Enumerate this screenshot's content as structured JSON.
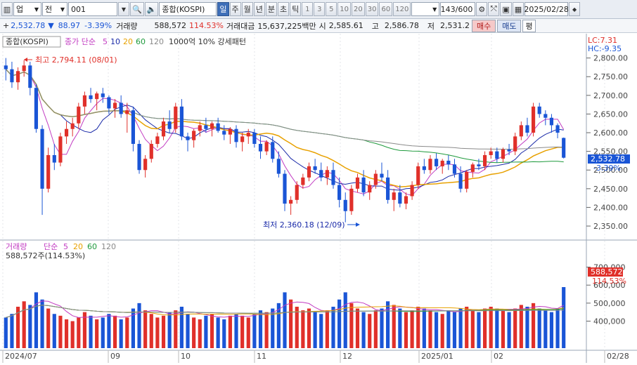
{
  "toolbar": {
    "market": "업",
    "market_type": "전",
    "code": "001",
    "name": "종합(KOSPI)",
    "periods": [
      "일",
      "주",
      "월",
      "년",
      "분",
      "초",
      "틱"
    ],
    "active_period": "일",
    "minute_options": [
      "1",
      "3",
      "5",
      "10",
      "20",
      "30",
      "60",
      "120"
    ],
    "count": "143",
    "count_total": "/600",
    "date": "2025/02/28"
  },
  "info": {
    "price": "2,532.78",
    "change": "88.97",
    "change_pct": "-3.39%",
    "volume_label": "거래량",
    "volume": "588,572",
    "volume_pct": "114.53%",
    "amount_label": "거래대금",
    "amount": "15,637,225백만",
    "open_label": "시",
    "open": "2,585.61",
    "high_label": "고",
    "high": "2,586.78",
    "low_label": "저",
    "low": "2,531.2",
    "buy_label": "매수",
    "sell_label": "매도",
    "eval_label": "평"
  },
  "price_legend": {
    "name": "종합(KOSPI)",
    "ma_label": "종가 단순",
    "ma_periods": [
      "5",
      "10",
      "20",
      "60",
      "120"
    ],
    "pattern": "1000억 10% 강세패턴"
  },
  "corner": {
    "lc": "LC:7.31",
    "hc": "HC:-9.35"
  },
  "annotations": {
    "high": "최고 2,794.11 (08/01)",
    "low": "최저 2,360.18 (12/09)"
  },
  "last_price": {
    "value": "2,532.78",
    "pct": "-3.39%"
  },
  "volume_legend": {
    "name": "거래량",
    "ma_label": "단순",
    "ma_periods": [
      "5",
      "20",
      "60",
      "120"
    ],
    "current": "588,572주(114.53%)"
  },
  "last_volume": {
    "value": "588,572",
    "pct": "114.53%"
  },
  "colors": {
    "up": "#e0302a",
    "down": "#1a55d6",
    "ma5": "#c23cc2",
    "ma10": "#1a2aa8",
    "ma20": "#e8a100",
    "ma60": "#1e9a3c",
    "ma120": "#8a8a8a"
  },
  "chart_data": {
    "type": "candlestick",
    "price_axis": {
      "ticks": [
        2350,
        2400,
        2450,
        2500,
        2550,
        2600,
        2650,
        2700,
        2750,
        2800
      ]
    },
    "volume_axis": {
      "ticks": [
        400000,
        500000,
        600000,
        700000
      ]
    },
    "x_labels": [
      "2024/07",
      "09",
      "10",
      "11",
      "12",
      "2025/01",
      "02",
      "02/28"
    ],
    "candles": [
      [
        2780,
        2800,
        2740,
        2770
      ],
      [
        2770,
        2790,
        2720,
        2735
      ],
      [
        2735,
        2775,
        2715,
        2765
      ],
      [
        2765,
        2794,
        2750,
        2780
      ],
      [
        2780,
        2790,
        2700,
        2720
      ],
      [
        2720,
        2730,
        2600,
        2610
      ],
      [
        2610,
        2620,
        2380,
        2450
      ],
      [
        2450,
        2560,
        2440,
        2540
      ],
      [
        2540,
        2570,
        2500,
        2520
      ],
      [
        2520,
        2600,
        2510,
        2590
      ],
      [
        2590,
        2630,
        2570,
        2610
      ],
      [
        2610,
        2640,
        2590,
        2625
      ],
      [
        2625,
        2680,
        2610,
        2670
      ],
      [
        2670,
        2710,
        2650,
        2700
      ],
      [
        2700,
        2720,
        2680,
        2690
      ],
      [
        2690,
        2710,
        2660,
        2705
      ],
      [
        2705,
        2720,
        2680,
        2695
      ],
      [
        2695,
        2700,
        2650,
        2665
      ],
      [
        2665,
        2690,
        2640,
        2680
      ],
      [
        2680,
        2700,
        2640,
        2650
      ],
      [
        2650,
        2680,
        2600,
        2660
      ],
      [
        2660,
        2670,
        2550,
        2570
      ],
      [
        2570,
        2580,
        2490,
        2500
      ],
      [
        2500,
        2540,
        2480,
        2530
      ],
      [
        2530,
        2580,
        2520,
        2570
      ],
      [
        2570,
        2600,
        2560,
        2590
      ],
      [
        2590,
        2640,
        2580,
        2630
      ],
      [
        2630,
        2660,
        2600,
        2610
      ],
      [
        2610,
        2680,
        2600,
        2670
      ],
      [
        2670,
        2690,
        2580,
        2590
      ],
      [
        2590,
        2600,
        2550,
        2580
      ],
      [
        2580,
        2610,
        2560,
        2605
      ],
      [
        2605,
        2630,
        2590,
        2620
      ],
      [
        2620,
        2640,
        2600,
        2610
      ],
      [
        2610,
        2630,
        2590,
        2625
      ],
      [
        2625,
        2640,
        2600,
        2605
      ],
      [
        2605,
        2620,
        2580,
        2595
      ],
      [
        2595,
        2615,
        2570,
        2610
      ],
      [
        2610,
        2620,
        2560,
        2575
      ],
      [
        2575,
        2600,
        2550,
        2590
      ],
      [
        2590,
        2610,
        2570,
        2600
      ],
      [
        2600,
        2610,
        2560,
        2570
      ],
      [
        2570,
        2590,
        2530,
        2550
      ],
      [
        2550,
        2580,
        2540,
        2575
      ],
      [
        2575,
        2590,
        2520,
        2530
      ],
      [
        2530,
        2550,
        2480,
        2490
      ],
      [
        2490,
        2500,
        2390,
        2410
      ],
      [
        2410,
        2430,
        2380,
        2420
      ],
      [
        2420,
        2470,
        2410,
        2460
      ],
      [
        2460,
        2490,
        2450,
        2480
      ],
      [
        2480,
        2520,
        2470,
        2510
      ],
      [
        2510,
        2530,
        2490,
        2500
      ],
      [
        2500,
        2520,
        2470,
        2480
      ],
      [
        2480,
        2510,
        2460,
        2500
      ],
      [
        2500,
        2520,
        2450,
        2460
      ],
      [
        2460,
        2480,
        2400,
        2420
      ],
      [
        2420,
        2440,
        2360,
        2390
      ],
      [
        2390,
        2460,
        2380,
        2450
      ],
      [
        2450,
        2490,
        2440,
        2480
      ],
      [
        2480,
        2500,
        2430,
        2440
      ],
      [
        2440,
        2470,
        2420,
        2460
      ],
      [
        2460,
        2500,
        2450,
        2490
      ],
      [
        2490,
        2520,
        2470,
        2480
      ],
      [
        2480,
        2500,
        2410,
        2420
      ],
      [
        2420,
        2450,
        2390,
        2440
      ],
      [
        2440,
        2460,
        2400,
        2410
      ],
      [
        2410,
        2440,
        2395,
        2430
      ],
      [
        2430,
        2470,
        2420,
        2460
      ],
      [
        2460,
        2520,
        2450,
        2510
      ],
      [
        2510,
        2530,
        2490,
        2500
      ],
      [
        2500,
        2540,
        2490,
        2530
      ],
      [
        2530,
        2545,
        2500,
        2510
      ],
      [
        2510,
        2530,
        2490,
        2525
      ],
      [
        2525,
        2540,
        2500,
        2515
      ],
      [
        2515,
        2530,
        2480,
        2490
      ],
      [
        2490,
        2510,
        2440,
        2450
      ],
      [
        2450,
        2500,
        2440,
        2495
      ],
      [
        2495,
        2520,
        2480,
        2515
      ],
      [
        2515,
        2530,
        2500,
        2510
      ],
      [
        2510,
        2550,
        2500,
        2540
      ],
      [
        2540,
        2560,
        2530,
        2550
      ],
      [
        2550,
        2560,
        2520,
        2530
      ],
      [
        2530,
        2560,
        2520,
        2555
      ],
      [
        2555,
        2570,
        2540,
        2550
      ],
      [
        2550,
        2600,
        2540,
        2590
      ],
      [
        2590,
        2630,
        2580,
        2620
      ],
      [
        2620,
        2640,
        2590,
        2600
      ],
      [
        2600,
        2680,
        2590,
        2670
      ],
      [
        2670,
        2680,
        2640,
        2650
      ],
      [
        2650,
        2660,
        2620,
        2640
      ],
      [
        2640,
        2650,
        2600,
        2620
      ],
      [
        2620,
        2625,
        2585,
        2600
      ],
      [
        2586,
        2587,
        2531,
        2533
      ]
    ],
    "volumes": [
      420,
      440,
      480,
      510,
      490,
      560,
      520,
      470,
      440,
      430,
      410,
      400,
      420,
      450,
      430,
      410,
      420,
      440,
      430,
      410,
      420,
      470,
      500,
      460,
      440,
      420,
      430,
      450,
      460,
      480,
      440,
      420,
      410,
      430,
      440,
      420,
      410,
      430,
      440,
      430,
      420,
      440,
      460,
      450,
      470,
      500,
      560,
      520,
      480,
      460,
      470,
      450,
      440,
      460,
      480,
      520,
      560,
      500,
      470,
      450,
      440,
      460,
      470,
      510,
      490,
      470,
      450,
      460,
      480,
      470,
      460,
      450,
      440,
      460,
      450,
      470,
      480,
      460,
      450,
      470,
      480,
      470,
      460,
      450,
      470,
      490,
      480,
      500,
      470,
      460,
      450,
      470,
      589
    ]
  }
}
